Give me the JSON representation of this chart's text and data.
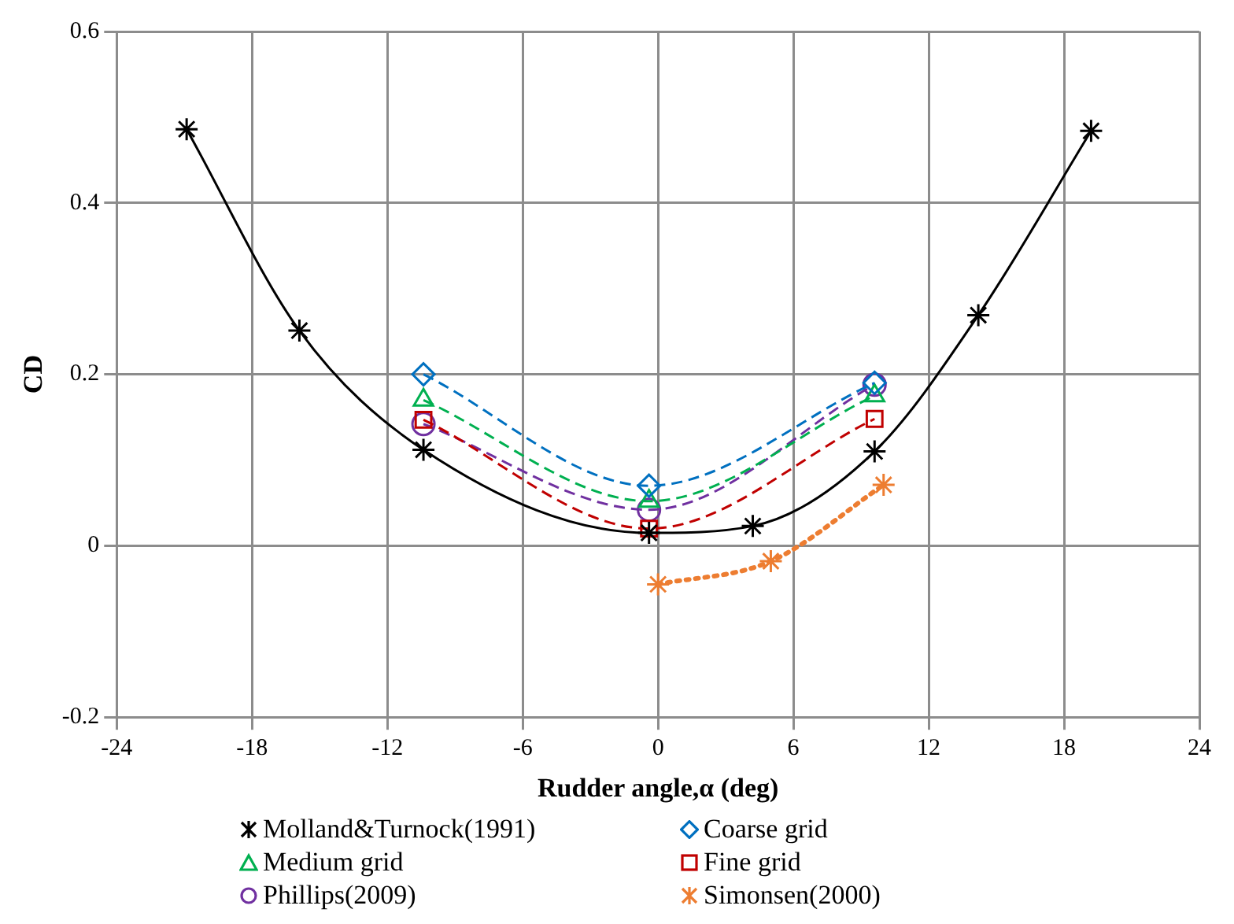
{
  "chart_data": {
    "type": "line",
    "xlabel": "Rudder angle,α (deg)",
    "ylabel": "CD",
    "xlim": [
      -24,
      24
    ],
    "xticks": [
      -24,
      -18,
      -12,
      -6,
      0,
      6,
      12,
      18,
      24
    ],
    "ylim": [
      -0.2,
      0.6
    ],
    "yticks": [
      -0.2,
      0,
      0.2,
      0.4,
      0.6
    ],
    "grid": true,
    "legend": "bottom",
    "series": [
      {
        "name": "Molland&Turnock(1991)",
        "color": "#000000",
        "marker": "cross",
        "line_style": "solid",
        "x": [
          -20.9,
          -15.9,
          -10.4,
          -0.4,
          4.2,
          9.6,
          14.2,
          19.2
        ],
        "values": [
          0.486,
          0.251,
          0.112,
          0.015,
          0.023,
          0.11,
          0.269,
          0.484
        ]
      },
      {
        "name": "Coarse grid",
        "color": "#0070c0",
        "marker": "diamond",
        "line_style": "dashed",
        "x": [
          -10.4,
          -0.4,
          9.6
        ],
        "values": [
          0.2,
          0.07,
          0.19
        ]
      },
      {
        "name": "Medium grid",
        "color": "#00b050",
        "marker": "triangle",
        "line_style": "dashed",
        "x": [
          -10.4,
          -0.4,
          9.6
        ],
        "values": [
          0.17,
          0.052,
          0.175
        ]
      },
      {
        "name": "Fine grid",
        "color": "#c00000",
        "marker": "square",
        "line_style": "dashed",
        "x": [
          -10.4,
          -0.4,
          9.6
        ],
        "values": [
          0.147,
          0.02,
          0.148
        ]
      },
      {
        "name": "Phillips(2009)",
        "color": "#7030a0",
        "marker": "circle",
        "line_style": "dashed",
        "x": [
          -10.4,
          -0.4,
          9.6
        ],
        "values": [
          0.142,
          0.042,
          0.188
        ]
      },
      {
        "name": "Simonsen(2000)",
        "color": "#ed7d31",
        "marker": "cross",
        "line_style": "dotted",
        "x": [
          0,
          5,
          10
        ],
        "values": [
          -0.045,
          -0.018,
          0.071
        ]
      }
    ]
  }
}
